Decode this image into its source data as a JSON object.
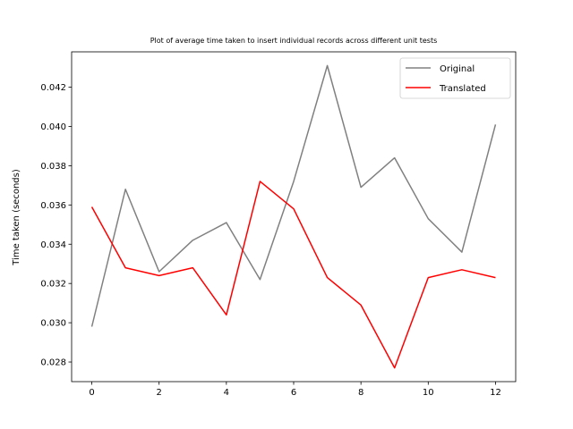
{
  "chart_data": {
    "type": "line",
    "title": "Plot of average time taken to insert individual records across different unit tests",
    "xlabel": "",
    "ylabel": "Time taken (seconds)",
    "xlim": [
      -0.6,
      12.6
    ],
    "ylim": [
      0.027,
      0.0438
    ],
    "x_ticks": [
      0,
      2,
      4,
      6,
      8,
      10,
      12
    ],
    "y_ticks": [
      0.028,
      0.03,
      0.032,
      0.034,
      0.036,
      0.038,
      0.04,
      0.042
    ],
    "grid": false,
    "legend_position": "top-right",
    "x": [
      0,
      1,
      2,
      3,
      4,
      5,
      6,
      7,
      8,
      9,
      10,
      11,
      12
    ],
    "series": [
      {
        "name": "Original",
        "color": "#808080",
        "values": [
          0.0298,
          0.0368,
          0.0326,
          0.0342,
          0.0351,
          0.0322,
          0.0372,
          0.0431,
          0.0369,
          0.0384,
          0.0353,
          0.0336,
          0.0401
        ]
      },
      {
        "name": "Translated",
        "color": "#ff0000",
        "values": [
          0.0359,
          0.0328,
          0.0324,
          0.0328,
          0.0304,
          0.0372,
          0.0358,
          0.0323,
          0.0309,
          0.0277,
          0.0323,
          0.0327,
          0.0323
        ]
      }
    ]
  }
}
